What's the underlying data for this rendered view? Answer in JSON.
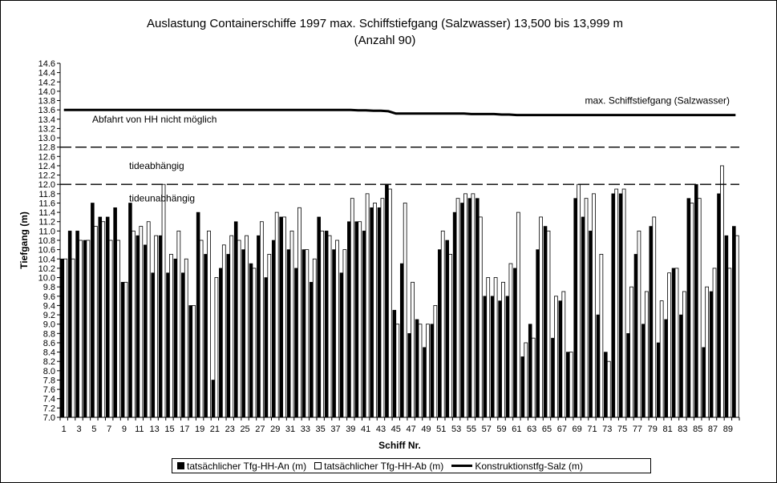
{
  "chart_data": {
    "type": "bar",
    "title_line1": "Auslastung Containerschiffe 1997 max. Schiffstiefgang (Salzwasser) 13,500 bis 13,999 m",
    "title_line2": "(Anzahl 90)",
    "xlabel": "Schiff Nr.",
    "ylabel": "Tiefgang (m)",
    "ylim": [
      7.0,
      14.6
    ],
    "ytick_step": 0.2,
    "x_tick_labels": [
      "1",
      "3",
      "5",
      "7",
      "9",
      "11",
      "13",
      "15",
      "17",
      "19",
      "21",
      "23",
      "25",
      "27",
      "29",
      "31",
      "33",
      "35",
      "37",
      "39",
      "41",
      "43",
      "45",
      "47",
      "49",
      "51",
      "53",
      "55",
      "57",
      "59",
      "61",
      "63",
      "65",
      "67",
      "69",
      "71",
      "73",
      "75",
      "77",
      "79",
      "81",
      "83",
      "85",
      "87",
      "89"
    ],
    "categories_count": 90,
    "series": [
      {
        "name": "tatsächlicher Tfg-HH-An (m)",
        "fill": "#000000",
        "values": [
          10.4,
          11.0,
          11.0,
          10.8,
          11.6,
          11.3,
          11.3,
          11.5,
          9.9,
          11.6,
          10.9,
          10.7,
          10.1,
          10.9,
          10.1,
          10.4,
          10.1,
          9.4,
          11.4,
          10.5,
          7.8,
          10.2,
          10.5,
          11.2,
          10.6,
          10.3,
          10.9,
          10.0,
          10.8,
          11.3,
          10.6,
          10.2,
          10.6,
          9.9,
          11.3,
          11.0,
          10.6,
          10.1,
          11.2,
          11.2,
          11.0,
          11.5,
          11.5,
          12.0,
          9.3,
          10.3,
          8.8,
          9.1,
          8.5,
          9.0,
          10.6,
          10.8,
          11.4,
          11.6,
          11.7,
          11.7,
          9.6,
          9.6,
          9.5,
          9.6,
          10.2,
          8.3,
          9.0,
          10.6,
          11.1,
          8.7,
          9.5,
          8.4,
          11.7,
          11.3,
          11.0,
          9.2,
          8.4,
          11.8,
          11.8,
          8.8,
          10.5,
          9.0,
          11.1,
          8.6,
          9.1,
          10.2,
          9.2,
          11.7,
          12.0,
          8.5,
          9.7,
          11.8,
          10.9,
          11.1
        ],
        "values_bar2": [
          10.4,
          10.4,
          10.8,
          10.8,
          11.1,
          11.2,
          10.8,
          10.8,
          9.9,
          11.0,
          11.1,
          11.2,
          10.9,
          12.0,
          10.5,
          11.0,
          10.4,
          9.4,
          10.8,
          11.0,
          10.0,
          10.7,
          10.9,
          10.8,
          10.9,
          10.2,
          11.2,
          10.5,
          11.4,
          11.3,
          11.0,
          11.5,
          10.6,
          10.4,
          11.0,
          10.9,
          10.8,
          10.6,
          11.7,
          11.2,
          11.8,
          11.6,
          11.7,
          11.9,
          9.0,
          11.6,
          9.9,
          9.0,
          9.0,
          9.4,
          11.0,
          10.5,
          11.7,
          11.8,
          11.8,
          11.3,
          10.0,
          10.0,
          9.9,
          10.3,
          11.4,
          8.6,
          8.7,
          11.3,
          11.0,
          9.6,
          9.7,
          8.4,
          12.0,
          11.7,
          11.8,
          10.5,
          8.2,
          11.9,
          11.9,
          9.8,
          11.0,
          9.7,
          11.3,
          9.5,
          10.1,
          10.2,
          9.7,
          11.6,
          11.7,
          9.8,
          10.2,
          12.4,
          10.2,
          10.9
        ]
      },
      {
        "name": "tatsächlicher Tfg-HH-Ab (m)",
        "fill": "#ffffff"
      },
      {
        "name": "Konstruktionstfg-Salz (m)",
        "line_values": [
          13.6,
          13.6,
          13.6,
          13.6,
          13.6,
          13.6,
          13.6,
          13.6,
          13.6,
          13.6,
          13.6,
          13.6,
          13.6,
          13.6,
          13.6,
          13.6,
          13.6,
          13.6,
          13.6,
          13.6,
          13.6,
          13.6,
          13.6,
          13.6,
          13.6,
          13.6,
          13.6,
          13.6,
          13.6,
          13.6,
          13.6,
          13.6,
          13.6,
          13.6,
          13.6,
          13.6,
          13.6,
          13.6,
          13.6,
          13.59,
          13.59,
          13.58,
          13.58,
          13.57,
          13.52,
          13.52,
          13.52,
          13.52,
          13.52,
          13.52,
          13.52,
          13.52,
          13.52,
          13.52,
          13.51,
          13.51,
          13.51,
          13.51,
          13.5,
          13.5,
          13.49,
          13.49,
          13.49,
          13.49,
          13.49,
          13.49,
          13.49,
          13.49,
          13.49,
          13.49,
          13.49,
          13.49,
          13.49,
          13.49,
          13.49,
          13.49,
          13.49,
          13.49,
          13.49,
          13.49,
          13.49,
          13.49,
          13.49,
          13.49,
          13.49,
          13.49,
          13.49,
          13.49,
          13.49,
          13.49
        ]
      }
    ],
    "reference_lines": [
      {
        "value": 12.8,
        "style": "dashed"
      },
      {
        "value": 12.0,
        "style": "dashed"
      }
    ],
    "annotations": [
      {
        "text": "max. Schiffstiefgang (Salzwasser)",
        "y": 13.8,
        "anchor": "right"
      },
      {
        "text": "Abfahrt von HH nicht möglich",
        "y": 13.4,
        "anchor": "left"
      },
      {
        "text": "tideabhängig",
        "y": 12.4,
        "anchor": "left"
      },
      {
        "text": "tideunabhängig",
        "y": 11.7,
        "anchor": "left"
      }
    ],
    "grid": false,
    "legend_position": "bottom"
  },
  "legend": {
    "item1": "tatsächlicher Tfg-HH-An (m)",
    "item2": "tatsächlicher Tfg-HH-Ab (m)",
    "item3": "Konstruktionstfg-Salz (m)"
  }
}
